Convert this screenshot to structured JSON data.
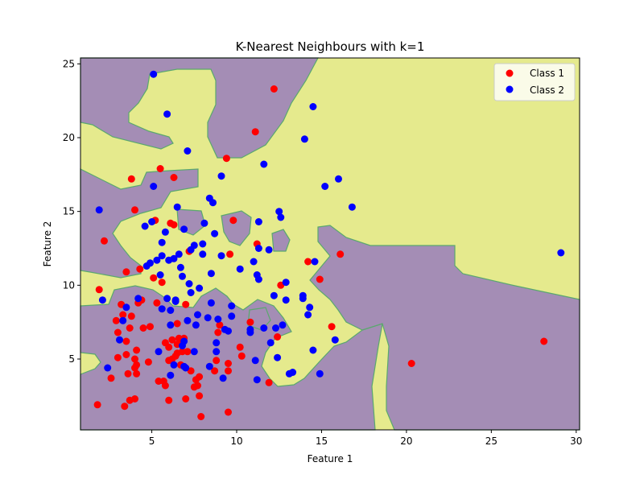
{
  "chart_data": {
    "type": "scatter",
    "title": "K-Nearest Neighbours with k=1",
    "xlabel": "Feature 1",
    "ylabel": "Feature 2",
    "xlim": [
      0.8,
      30.2
    ],
    "ylim": [
      0.2,
      25.4
    ],
    "xticks": [
      5,
      10,
      15,
      20,
      25,
      30
    ],
    "yticks": [
      5,
      10,
      15,
      20,
      25
    ],
    "grid": false,
    "legend_position": "top-right",
    "region_colors": {
      "class1": "#a48db5",
      "class2": "#e5ea8d",
      "boundary": "#5aa86e"
    },
    "series": [
      {
        "name": "Class 1",
        "color": "#ff0000",
        "points": [
          [
            1.8,
            1.9
          ],
          [
            2.2,
            13.0
          ],
          [
            1.9,
            9.7
          ],
          [
            2.6,
            3.7
          ],
          [
            2.9,
            7.6
          ],
          [
            3.0,
            6.8
          ],
          [
            3.0,
            5.1
          ],
          [
            3.2,
            8.7
          ],
          [
            3.3,
            8.0
          ],
          [
            3.4,
            1.8
          ],
          [
            3.5,
            6.2
          ],
          [
            3.5,
            5.3
          ],
          [
            3.5,
            10.9
          ],
          [
            3.6,
            4.0
          ],
          [
            3.7,
            2.2
          ],
          [
            3.7,
            7.1
          ],
          [
            3.8,
            17.2
          ],
          [
            3.8,
            7.9
          ],
          [
            4.0,
            5.0
          ],
          [
            4.0,
            4.4
          ],
          [
            4.0,
            2.3
          ],
          [
            4.0,
            15.1
          ],
          [
            4.1,
            4.6
          ],
          [
            4.1,
            4.0
          ],
          [
            4.1,
            5.6
          ],
          [
            4.2,
            8.8
          ],
          [
            4.3,
            11.1
          ],
          [
            4.4,
            9.0
          ],
          [
            4.5,
            7.1
          ],
          [
            4.8,
            4.8
          ],
          [
            4.9,
            7.2
          ],
          [
            5.1,
            10.5
          ],
          [
            5.2,
            14.4
          ],
          [
            5.3,
            8.8
          ],
          [
            5.4,
            3.5
          ],
          [
            5.5,
            17.9
          ],
          [
            5.6,
            10.2
          ],
          [
            5.7,
            3.5
          ],
          [
            5.8,
            6.1
          ],
          [
            5.8,
            3.2
          ],
          [
            6.0,
            2.2
          ],
          [
            6.0,
            4.9
          ],
          [
            6.0,
            5.8
          ],
          [
            6.1,
            14.2
          ],
          [
            6.2,
            5.0
          ],
          [
            6.2,
            6.3
          ],
          [
            6.3,
            17.3
          ],
          [
            6.3,
            14.1
          ],
          [
            6.4,
            5.2
          ],
          [
            6.5,
            6.0
          ],
          [
            6.5,
            5.4
          ],
          [
            6.5,
            7.4
          ],
          [
            6.6,
            6.4
          ],
          [
            6.7,
            4.6
          ],
          [
            6.8,
            6.2
          ],
          [
            6.8,
            5.5
          ],
          [
            6.9,
            6.4
          ],
          [
            7.0,
            8.7
          ],
          [
            7.0,
            2.3
          ],
          [
            7.1,
            5.5
          ],
          [
            7.2,
            12.3
          ],
          [
            7.3,
            4.2
          ],
          [
            7.5,
            3.1
          ],
          [
            7.6,
            3.6
          ],
          [
            7.7,
            3.2
          ],
          [
            7.8,
            2.5
          ],
          [
            7.8,
            3.8
          ],
          [
            7.9,
            1.1
          ],
          [
            8.7,
            4.2
          ],
          [
            8.8,
            4.9
          ],
          [
            8.9,
            6.8
          ],
          [
            9.0,
            7.3
          ],
          [
            9.4,
            18.6
          ],
          [
            9.5,
            4.7
          ],
          [
            9.5,
            4.2
          ],
          [
            9.5,
            1.4
          ],
          [
            9.6,
            12.1
          ],
          [
            9.8,
            14.4
          ],
          [
            10.2,
            5.8
          ],
          [
            10.3,
            5.2
          ],
          [
            10.8,
            7.5
          ],
          [
            11.1,
            20.4
          ],
          [
            11.2,
            12.8
          ],
          [
            11.9,
            3.4
          ],
          [
            12.2,
            23.3
          ],
          [
            12.4,
            6.5
          ],
          [
            12.6,
            10.0
          ],
          [
            14.2,
            11.6
          ],
          [
            14.9,
            10.4
          ],
          [
            15.6,
            7.2
          ],
          [
            16.1,
            12.1
          ],
          [
            20.3,
            4.7
          ],
          [
            28.1,
            6.2
          ]
        ]
      },
      {
        "name": "Class 2",
        "color": "#0000ff",
        "points": [
          [
            1.9,
            15.1
          ],
          [
            2.1,
            9.0
          ],
          [
            2.4,
            4.4
          ],
          [
            3.1,
            6.3
          ],
          [
            3.3,
            7.6
          ],
          [
            3.5,
            8.5
          ],
          [
            4.2,
            9.1
          ],
          [
            4.6,
            14.0
          ],
          [
            4.7,
            11.3
          ],
          [
            4.9,
            11.5
          ],
          [
            5.0,
            14.3
          ],
          [
            5.1,
            16.7
          ],
          [
            5.1,
            24.3
          ],
          [
            5.3,
            11.7
          ],
          [
            5.4,
            5.5
          ],
          [
            5.5,
            10.7
          ],
          [
            5.6,
            12.0
          ],
          [
            5.6,
            12.9
          ],
          [
            5.6,
            8.4
          ],
          [
            5.8,
            13.6
          ],
          [
            5.9,
            21.6
          ],
          [
            5.9,
            9.1
          ],
          [
            6.0,
            11.7
          ],
          [
            6.1,
            8.3
          ],
          [
            6.1,
            7.3
          ],
          [
            6.1,
            3.9
          ],
          [
            6.3,
            11.8
          ],
          [
            6.3,
            4.6
          ],
          [
            6.4,
            9.0
          ],
          [
            6.4,
            8.9
          ],
          [
            6.5,
            15.3
          ],
          [
            6.6,
            12.1
          ],
          [
            6.7,
            11.2
          ],
          [
            6.8,
            10.6
          ],
          [
            6.8,
            5.9
          ],
          [
            6.9,
            6.2
          ],
          [
            6.9,
            13.8
          ],
          [
            6.9,
            4.5
          ],
          [
            7.0,
            4.4
          ],
          [
            7.1,
            19.1
          ],
          [
            7.1,
            7.6
          ],
          [
            7.2,
            10.1
          ],
          [
            7.3,
            12.4
          ],
          [
            7.3,
            9.5
          ],
          [
            7.5,
            5.5
          ],
          [
            7.5,
            12.7
          ],
          [
            7.6,
            7.3
          ],
          [
            7.7,
            8.0
          ],
          [
            7.8,
            9.8
          ],
          [
            8.0,
            12.1
          ],
          [
            8.0,
            12.8
          ],
          [
            8.1,
            14.2
          ],
          [
            8.3,
            7.8
          ],
          [
            8.4,
            15.9
          ],
          [
            8.4,
            4.5
          ],
          [
            8.5,
            10.8
          ],
          [
            8.5,
            8.8
          ],
          [
            8.6,
            15.6
          ],
          [
            8.7,
            13.5
          ],
          [
            8.8,
            5.5
          ],
          [
            8.8,
            6.1
          ],
          [
            8.9,
            7.7
          ],
          [
            9.1,
            17.4
          ],
          [
            9.1,
            12.0
          ],
          [
            9.2,
            3.7
          ],
          [
            9.3,
            7.0
          ],
          [
            9.5,
            6.9
          ],
          [
            9.7,
            8.6
          ],
          [
            9.7,
            7.9
          ],
          [
            10.2,
            11.1
          ],
          [
            10.8,
            7.0
          ],
          [
            10.8,
            6.8
          ],
          [
            11.0,
            11.6
          ],
          [
            11.1,
            4.9
          ],
          [
            11.2,
            3.6
          ],
          [
            11.2,
            10.7
          ],
          [
            11.3,
            14.3
          ],
          [
            11.3,
            12.5
          ],
          [
            11.3,
            10.4
          ],
          [
            11.6,
            7.1
          ],
          [
            11.6,
            18.2
          ],
          [
            11.9,
            12.4
          ],
          [
            12.0,
            6.1
          ],
          [
            12.2,
            9.3
          ],
          [
            12.3,
            7.1
          ],
          [
            12.4,
            5.1
          ],
          [
            12.5,
            15.0
          ],
          [
            12.6,
            14.6
          ],
          [
            12.7,
            7.3
          ],
          [
            12.9,
            9.0
          ],
          [
            12.9,
            10.2
          ],
          [
            13.1,
            4.0
          ],
          [
            13.3,
            4.1
          ],
          [
            13.9,
            9.1
          ],
          [
            13.9,
            9.3
          ],
          [
            14.0,
            19.9
          ],
          [
            14.2,
            8.0
          ],
          [
            14.3,
            8.5
          ],
          [
            14.5,
            5.6
          ],
          [
            14.5,
            22.1
          ],
          [
            14.6,
            11.6
          ],
          [
            14.9,
            4.0
          ],
          [
            15.2,
            16.7
          ],
          [
            15.8,
            6.3
          ],
          [
            16.0,
            17.2
          ],
          [
            16.8,
            15.3
          ],
          [
            29.1,
            12.2
          ]
        ]
      }
    ]
  }
}
